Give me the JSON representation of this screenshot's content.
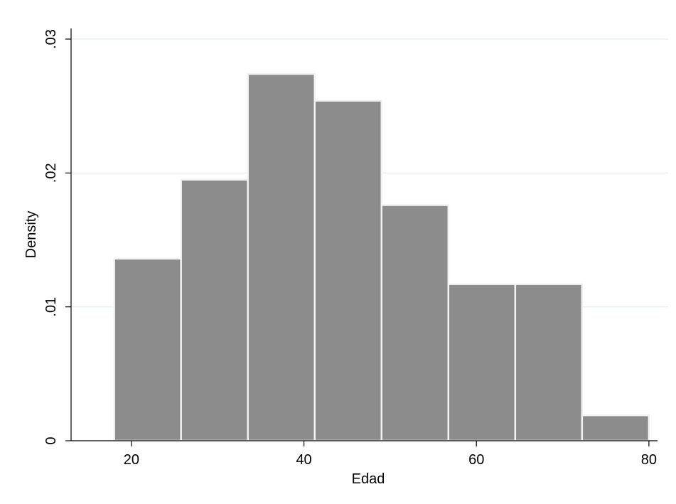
{
  "chart_data": {
    "type": "bar",
    "title": "",
    "xlabel": "Edad",
    "ylabel": "Density",
    "xlim": [
      13,
      81
    ],
    "ylim": [
      0,
      0.03
    ],
    "x_ticks": [
      20,
      40,
      60,
      80
    ],
    "x_tick_labels": [
      "20",
      "40",
      "60",
      "80"
    ],
    "y_ticks": [
      0,
      0.01,
      0.02,
      0.03
    ],
    "y_tick_labels": [
      "0",
      ".01",
      ".02",
      ".03"
    ],
    "grid": "horizontal",
    "bins": [
      {
        "start": 18.0,
        "end": 25.75,
        "density": 0.0136
      },
      {
        "start": 25.75,
        "end": 33.5,
        "density": 0.0195
      },
      {
        "start": 33.5,
        "end": 41.25,
        "density": 0.0274
      },
      {
        "start": 41.25,
        "end": 49.0,
        "density": 0.0254
      },
      {
        "start": 49.0,
        "end": 56.75,
        "density": 0.0176
      },
      {
        "start": 56.75,
        "end": 64.5,
        "density": 0.0117
      },
      {
        "start": 64.5,
        "end": 72.25,
        "density": 0.0117
      },
      {
        "start": 72.25,
        "end": 80.0,
        "density": 0.0019
      }
    ],
    "colors": {
      "bar_fill": "#8c8c8c",
      "bar_stroke": "#f2f2f2",
      "grid": "#e8f0f0",
      "axis": "#000000",
      "background": "#ffffff"
    }
  }
}
